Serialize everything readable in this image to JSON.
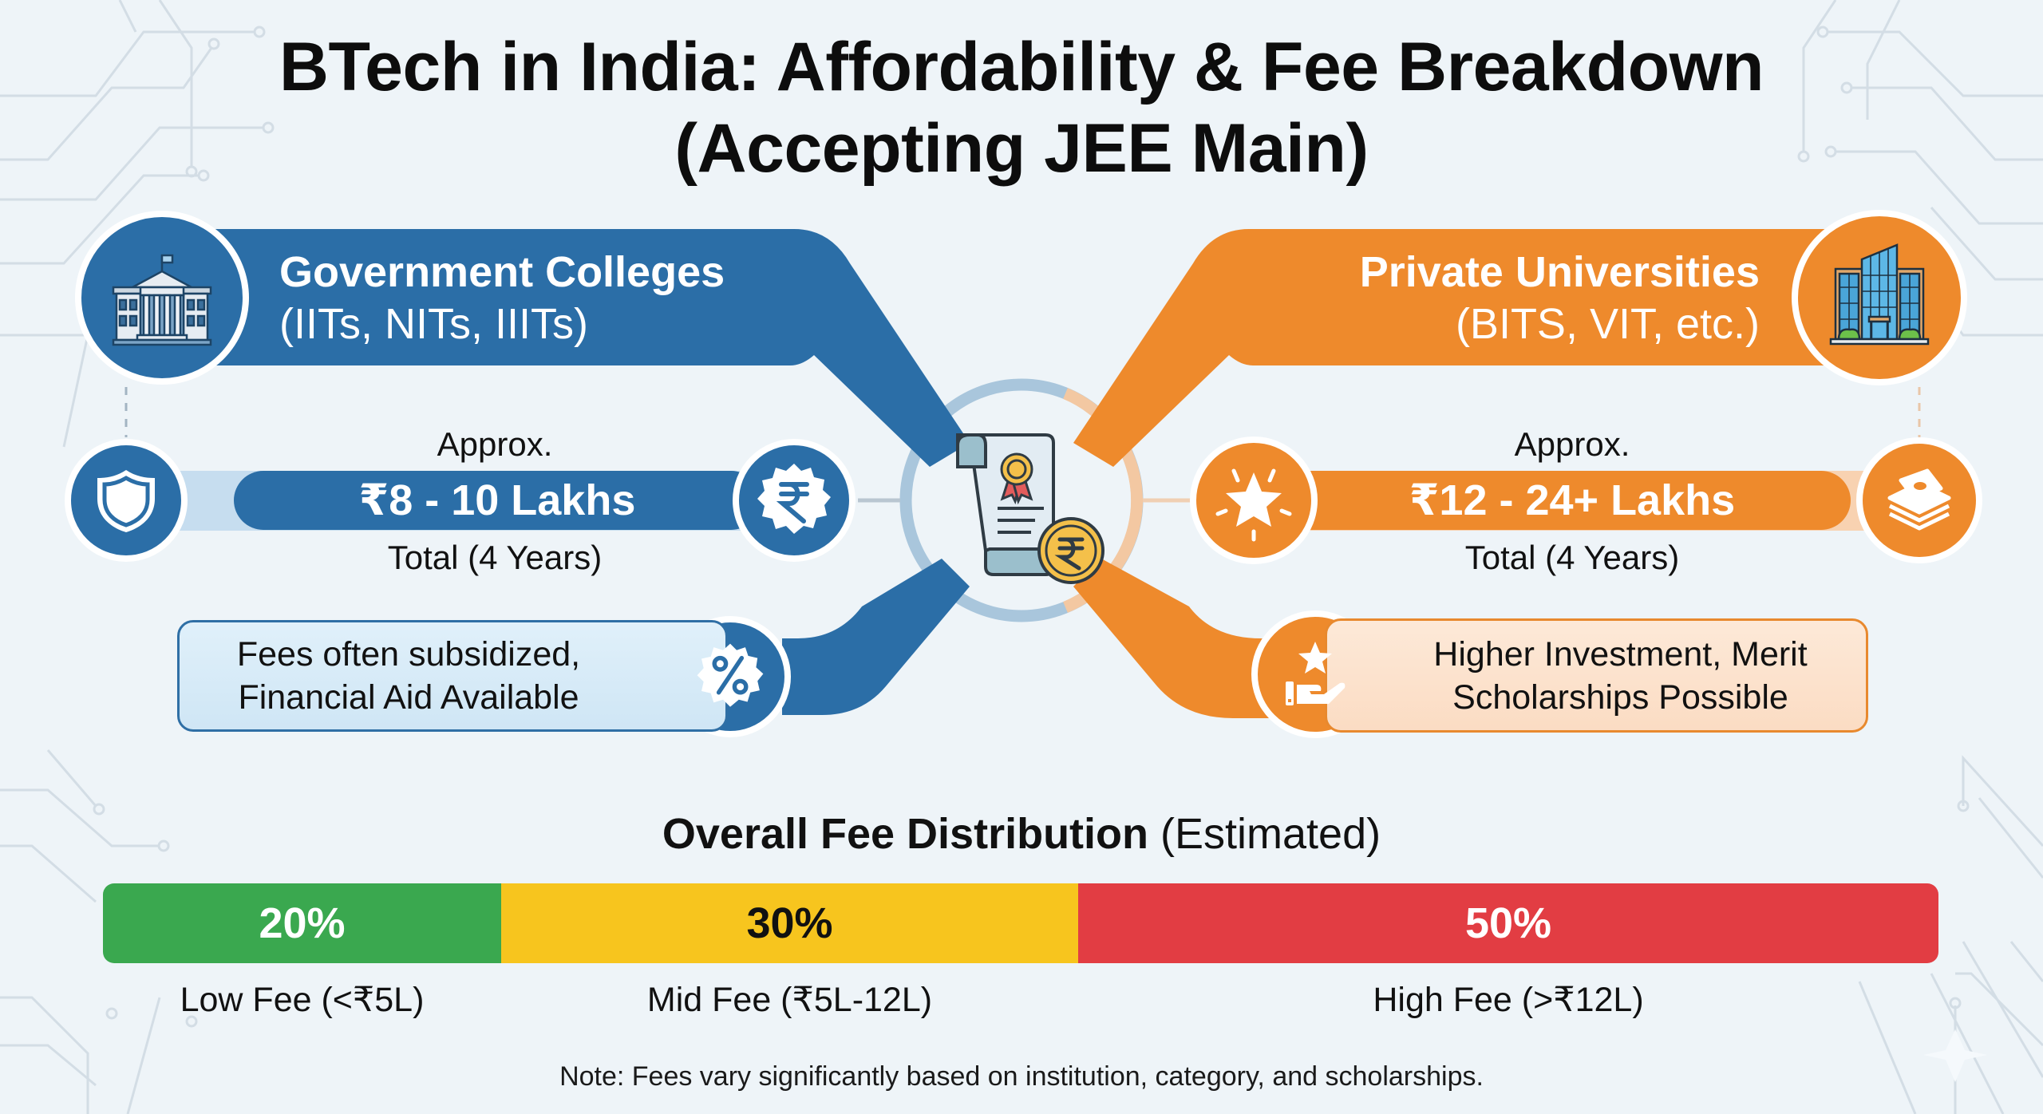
{
  "title": {
    "line1": "BTech in India: Affordability & Fee Breakdown",
    "line2": "(Accepting JEE Main)"
  },
  "colors": {
    "government_blue": "#2b6ea7",
    "government_light": "#bcd9ee",
    "private_orange": "#ee8a2c",
    "private_light": "#f8c99c",
    "low_fee_green": "#3aa84f",
    "mid_fee_yellow": "#f7c51e",
    "high_fee_red": "#e23d43",
    "background": "#eef4f8"
  },
  "government": {
    "title": "Government Colleges",
    "subtitle": "(IITs, NITs, IIITs)",
    "approx_label": "Approx.",
    "fee_range": "₹8 - 10 Lakhs",
    "total_label": "Total (4 Years)",
    "note_line1": "Fees often subsidized,",
    "note_line2": "Financial Aid Available",
    "icons": [
      "government-building-icon",
      "shield-icon",
      "rupee-badge-icon",
      "percent-badge-icon"
    ]
  },
  "private": {
    "title": "Private Universities",
    "subtitle": "(BITS, VIT, etc.)",
    "approx_label": "Approx.",
    "fee_range": "₹12 - 24+ Lakhs",
    "total_label": "Total (4 Years)",
    "note_line1": "Higher Investment, Merit",
    "note_line2": "Scholarships Possible",
    "icons": [
      "modern-building-icon",
      "star-icon",
      "money-stack-icon",
      "hand-star-icon"
    ]
  },
  "center": {
    "icon": "certificate-rupee-icon"
  },
  "distribution": {
    "title_bold": "Overall Fee Distribution",
    "title_rest": "(Estimated)"
  },
  "chart_data": {
    "type": "bar",
    "orientation": "horizontal-stacked",
    "title": "Overall Fee Distribution (Estimated)",
    "categories": [
      "Low Fee (<₹5L)",
      "Mid Fee (₹5L-12L)",
      "High Fee (>₹12L)"
    ],
    "values": [
      20,
      30,
      50
    ],
    "value_labels": [
      "20%",
      "30%",
      "50%"
    ],
    "unit": "%",
    "colors": [
      "#3aa84f",
      "#f7c51e",
      "#e23d43"
    ],
    "label_colors": [
      "#ffffff",
      "#111111",
      "#ffffff"
    ]
  },
  "footnote": "Note: Fees vary significantly based on institution, category, and scholarships."
}
